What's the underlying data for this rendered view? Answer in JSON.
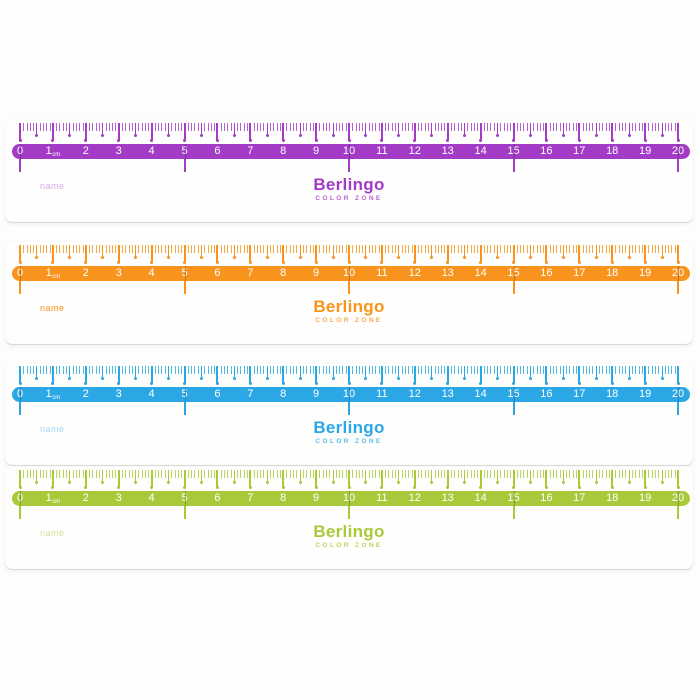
{
  "photo": {
    "background_color": "#fdfdfc",
    "subject": "Four Berlingo Color Zone 20 cm plastic rulers stacked vertically"
  },
  "brand": {
    "logo_text": "Berlingo",
    "tagline_text": "COLOR ZONE"
  },
  "scale": {
    "unit": "cm",
    "min": 0,
    "max": 20,
    "mm_per_cm": 10,
    "long_tick_every_cm": 5,
    "first_cm_unit_suffix": "cm",
    "numbers": [
      "0",
      "1",
      "2",
      "3",
      "4",
      "5",
      "6",
      "7",
      "8",
      "9",
      "10",
      "11",
      "12",
      "13",
      "14",
      "15",
      "16",
      "17",
      "18",
      "19",
      "20"
    ],
    "number_text_color": "#ffffff"
  },
  "rulers": [
    {
      "color_name": "purple",
      "name_label": "name",
      "band_color": "#a33bc6",
      "name_color": "#d6aae7",
      "tagline_color": "#bb63d6"
    },
    {
      "color_name": "orange",
      "name_label": "name",
      "band_color": "#f8941d",
      "name_color": "#f8c undefined",
      "tagline_color": "#f9aa4b"
    },
    {
      "color_name": "blue",
      "name_label": "name",
      "band_color": "#2ba7e5",
      "name_color": "#a8d8f2",
      "tagline_color": "#5fbdea"
    },
    {
      "color_name": "green",
      "name_label": "name",
      "band_color": "#a9c93a",
      "name_color": "#d5e29a",
      "tagline_color": "#bad465"
    }
  ]
}
